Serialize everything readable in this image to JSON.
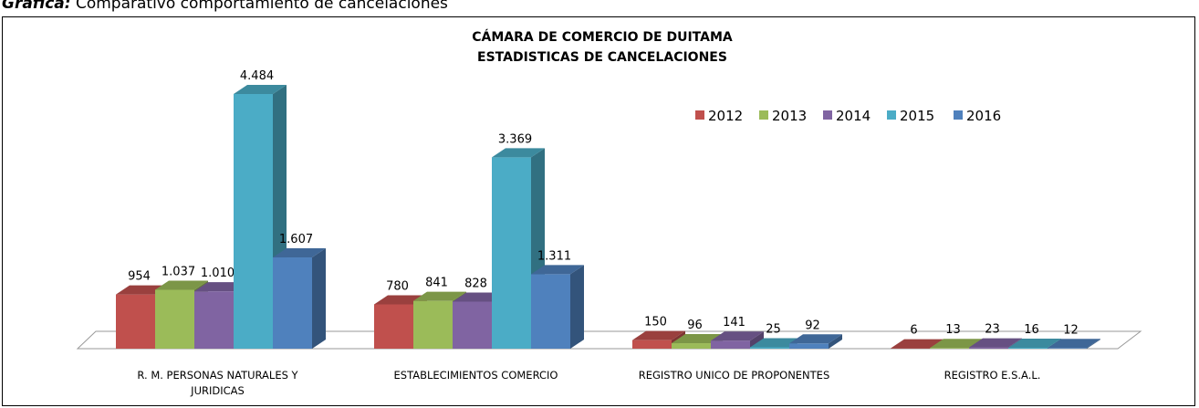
{
  "caption": {
    "label": "Gráfica:",
    "text": "Comparativo comportamiento de cancelaciones"
  },
  "chart_data": {
    "type": "bar3d",
    "title": "CÁMARA DE COMERCIO DE DUITAMA",
    "subtitle": "ESTADISTICAS DE CANCELACIONES",
    "categories": [
      "R. M. PERSONAS NATURALES Y JURIDICAS",
      "ESTABLECIMIENTOS  COMERCIO",
      "REGISTRO UNICO DE PROPONENTES",
      "REGISTRO  E.S.A.L."
    ],
    "legend": "top-right",
    "series": [
      {
        "name": "2012",
        "color": "#c0504d",
        "values": [
          954,
          780,
          150,
          6
        ],
        "value_labels": [
          "954",
          "780",
          "150",
          "6"
        ]
      },
      {
        "name": "2013",
        "color": "#9bbb59",
        "values": [
          1037,
          841,
          96,
          13
        ],
        "value_labels": [
          "1.037",
          "841",
          "96",
          "13"
        ]
      },
      {
        "name": "2014",
        "color": "#8064a2",
        "values": [
          1010,
          828,
          141,
          23
        ],
        "value_labels": [
          "1.010",
          "828",
          "141",
          "23"
        ]
      },
      {
        "name": "2015",
        "color": "#4bacc6",
        "values": [
          4484,
          3369,
          25,
          16
        ],
        "value_labels": [
          "4.484",
          "3.369",
          "25",
          "16"
        ]
      },
      {
        "name": "2016",
        "color": "#4f81bd",
        "values": [
          1607,
          1311,
          92,
          12
        ],
        "value_labels": [
          "1.607",
          "1.311",
          "92",
          "12"
        ]
      }
    ]
  }
}
